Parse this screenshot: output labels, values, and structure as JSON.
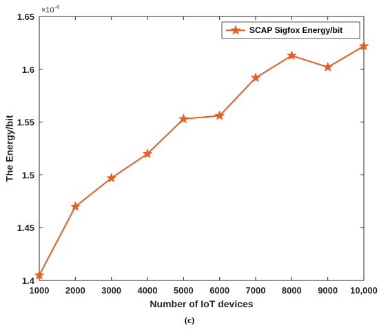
{
  "chart_data": {
    "type": "line",
    "title": "",
    "xlabel": "Number of IoT devices",
    "ylabel": "The Energy/bit",
    "x_tick_labels": [
      "1000",
      "2000",
      "3000",
      "4000",
      "5000",
      "6000",
      "7000",
      "8000",
      "9000",
      "10,000"
    ],
    "y_tick_labels": [
      "1.4",
      "1.45",
      "1.5",
      "1.55",
      "1.6",
      "1.65"
    ],
    "y_multiplier_label": "×10",
    "y_multiplier_exponent": "-4",
    "x": [
      1000,
      2000,
      3000,
      4000,
      5000,
      6000,
      7000,
      8000,
      9000,
      10000
    ],
    "xlim": [
      1000,
      10000
    ],
    "ylim": [
      1.4,
      1.65
    ],
    "y_scale_factor": 0.0001,
    "series": [
      {
        "name": "SCAP Sigfox Energy/bit",
        "values": [
          1.405,
          1.47,
          1.497,
          1.52,
          1.553,
          1.556,
          1.592,
          1.613,
          1.602,
          1.622
        ],
        "color": "#f05a1e",
        "marker": "star"
      }
    ],
    "legend_position": "top-right",
    "grid": false
  },
  "caption": "(c)"
}
